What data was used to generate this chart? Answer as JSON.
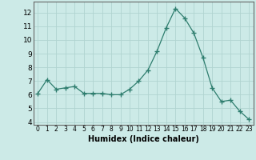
{
  "x": [
    0,
    1,
    2,
    3,
    4,
    5,
    6,
    7,
    8,
    9,
    10,
    11,
    12,
    13,
    14,
    15,
    16,
    17,
    18,
    19,
    20,
    21,
    22,
    23
  ],
  "y": [
    6.1,
    7.1,
    6.4,
    6.5,
    6.6,
    6.1,
    6.1,
    6.1,
    6.0,
    6.0,
    6.4,
    7.0,
    7.8,
    9.2,
    10.9,
    12.3,
    11.6,
    10.5,
    8.7,
    6.5,
    5.5,
    5.6,
    4.8,
    4.2
  ],
  "line_color": "#2e7d6e",
  "marker": "+",
  "marker_size": 4,
  "bg_color": "#cceae7",
  "grid_color": "#b0d4d0",
  "xlabel": "Humidex (Indice chaleur)",
  "ylabel_ticks": [
    4,
    5,
    6,
    7,
    8,
    9,
    10,
    11,
    12
  ],
  "xlim": [
    -0.5,
    23.5
  ],
  "ylim": [
    3.8,
    12.8
  ],
  "xtick_labels": [
    "0",
    "1",
    "2",
    "3",
    "4",
    "5",
    "6",
    "7",
    "8",
    "9",
    "10",
    "11",
    "12",
    "13",
    "14",
    "15",
    "16",
    "17",
    "18",
    "19",
    "20",
    "21",
    "22",
    "23"
  ]
}
